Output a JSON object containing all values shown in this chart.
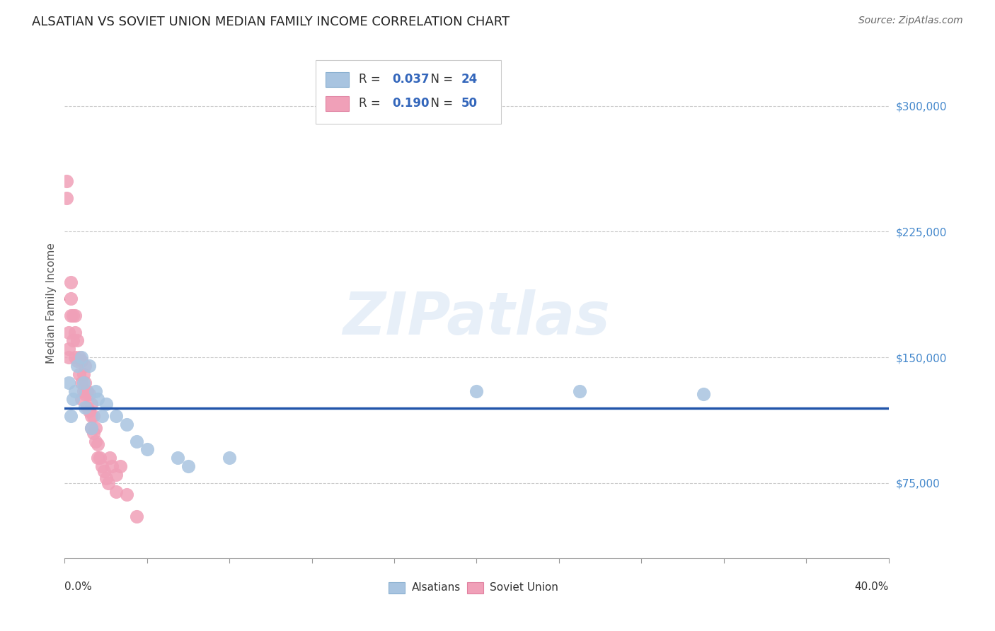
{
  "title": "ALSATIAN VS SOVIET UNION MEDIAN FAMILY INCOME CORRELATION CHART",
  "source": "Source: ZipAtlas.com",
  "ylabel": "Median Family Income",
  "xlim": [
    0.0,
    0.4
  ],
  "ylim": [
    30000,
    335000
  ],
  "yticks": [
    75000,
    150000,
    225000,
    300000
  ],
  "ytick_labels": [
    "$75,000",
    "$150,000",
    "$225,000",
    "$300,000"
  ],
  "watermark": "ZIPatlas",
  "alsatians_R": 0.037,
  "alsatians_N": 24,
  "alsatians_color": "#a8c4e0",
  "alsatians_line_color": "#2255aa",
  "soviet_R": 0.19,
  "soviet_N": 50,
  "soviet_color": "#f0a0b8",
  "soviet_line_color": "#cc3355",
  "alsatians_x": [
    0.002,
    0.003,
    0.004,
    0.005,
    0.006,
    0.008,
    0.009,
    0.01,
    0.012,
    0.013,
    0.015,
    0.016,
    0.018,
    0.02,
    0.025,
    0.03,
    0.035,
    0.04,
    0.055,
    0.06,
    0.08,
    0.2,
    0.25,
    0.31
  ],
  "alsatians_y": [
    135000,
    115000,
    125000,
    130000,
    145000,
    150000,
    135000,
    120000,
    145000,
    108000,
    130000,
    125000,
    115000,
    122000,
    115000,
    110000,
    100000,
    95000,
    90000,
    85000,
    90000,
    130000,
    130000,
    128000
  ],
  "soviet_x": [
    0.001,
    0.001,
    0.002,
    0.002,
    0.002,
    0.003,
    0.003,
    0.003,
    0.004,
    0.004,
    0.005,
    0.005,
    0.005,
    0.006,
    0.006,
    0.007,
    0.007,
    0.008,
    0.008,
    0.008,
    0.009,
    0.009,
    0.01,
    0.01,
    0.01,
    0.011,
    0.011,
    0.012,
    0.012,
    0.013,
    0.013,
    0.013,
    0.014,
    0.014,
    0.015,
    0.015,
    0.016,
    0.016,
    0.017,
    0.018,
    0.019,
    0.02,
    0.021,
    0.022,
    0.023,
    0.025,
    0.025,
    0.027,
    0.03,
    0.035
  ],
  "soviet_y": [
    245000,
    255000,
    165000,
    155000,
    150000,
    195000,
    185000,
    175000,
    175000,
    160000,
    175000,
    165000,
    150000,
    160000,
    148000,
    150000,
    140000,
    148000,
    135000,
    125000,
    140000,
    130000,
    145000,
    135000,
    128000,
    130000,
    120000,
    128000,
    118000,
    122000,
    115000,
    108000,
    115000,
    105000,
    108000,
    100000,
    98000,
    90000,
    90000,
    85000,
    82000,
    78000,
    75000,
    90000,
    85000,
    80000,
    70000,
    85000,
    68000,
    55000
  ],
  "background_color": "#ffffff",
  "grid_color": "#cccccc",
  "title_fontsize": 13,
  "axis_label_fontsize": 11,
  "tick_fontsize": 11,
  "legend_fontsize": 12,
  "source_fontsize": 10,
  "ytick_color": "#4488cc"
}
